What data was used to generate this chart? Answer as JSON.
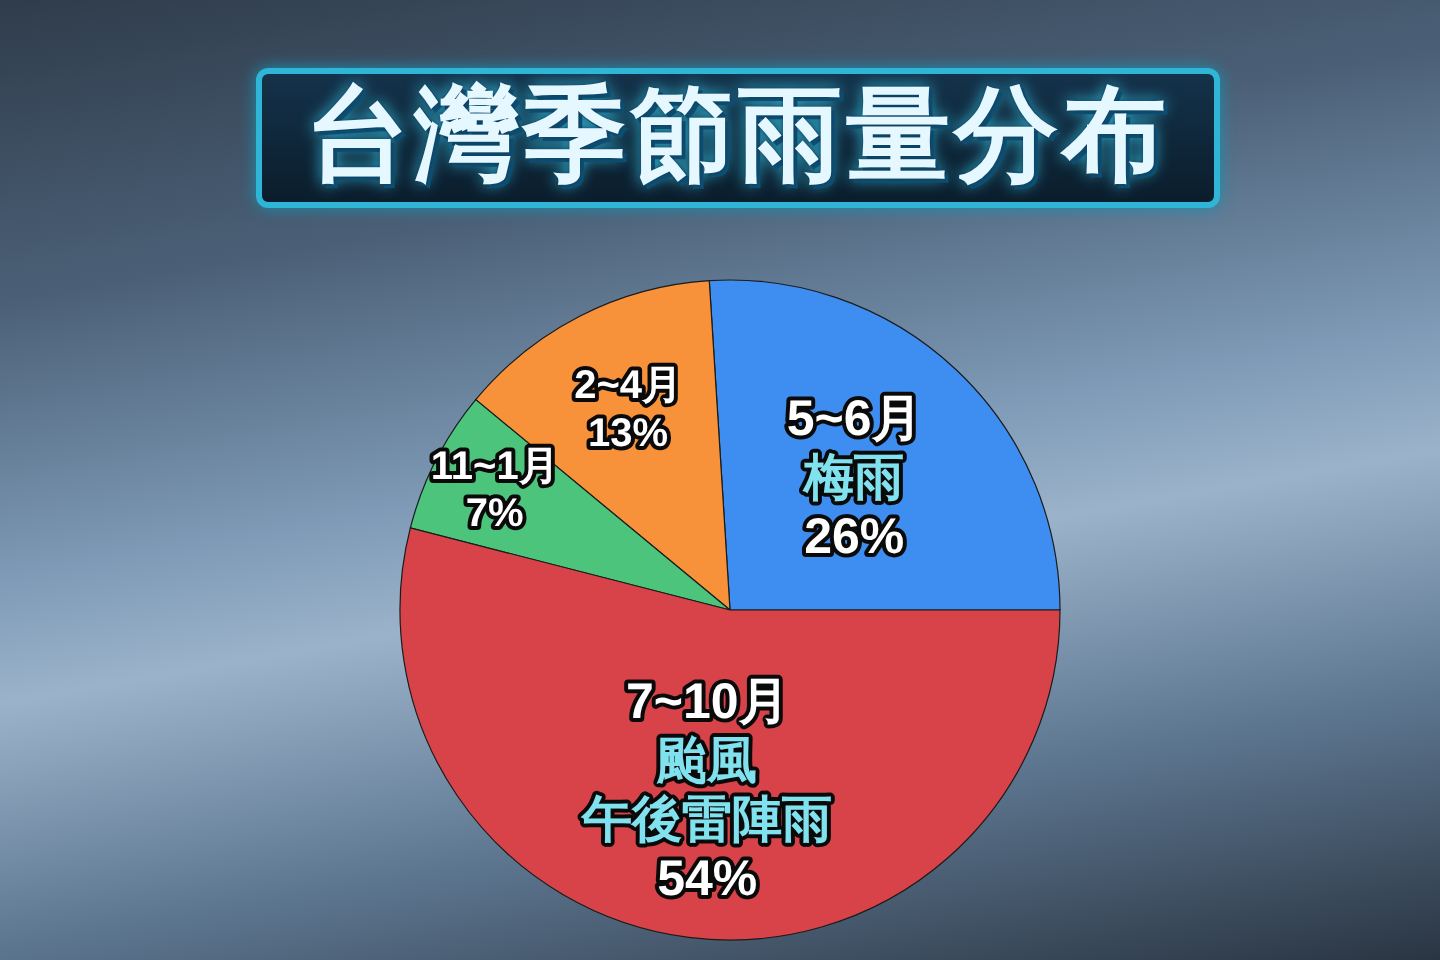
{
  "chart_data": {
    "type": "pie",
    "title": "台灣季節雨量分布",
    "categories": [
      "5~6月梅雨",
      "2~4月",
      "11~1月",
      "7~10月颱風午後雷陣雨"
    ],
    "values": [
      26,
      13,
      7,
      54
    ],
    "value_labels": [
      "26%",
      "13%",
      "7%",
      "54%"
    ],
    "colors": [
      "#3d8ef0",
      "#f7923a",
      "#4cc47c",
      "#d8434a"
    ]
  }
}
